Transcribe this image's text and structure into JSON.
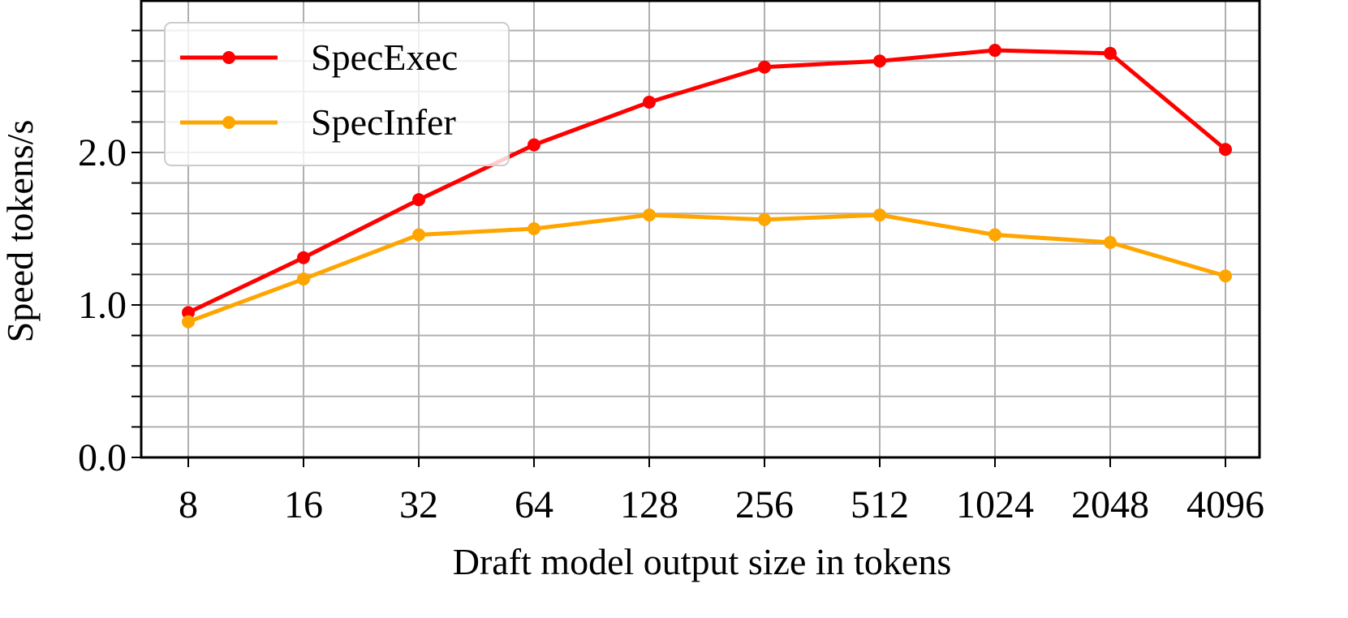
{
  "chart_data": {
    "type": "line",
    "title": "",
    "xlabel": "Draft model output size in tokens",
    "ylabel": "Speed tokens/s",
    "x_scale": "log2",
    "categories": [
      "8",
      "16",
      "32",
      "64",
      "128",
      "256",
      "512",
      "1024",
      "2048",
      "4096"
    ],
    "ylim": [
      0,
      3.0
    ],
    "yticks": [
      0.0,
      1.0,
      2.0
    ],
    "ytick_labels": [
      "0.0",
      "1.0",
      "2.0"
    ],
    "y_minor_step": 0.2,
    "grid": true,
    "legend_position": "top-left",
    "series": [
      {
        "name": "SpecExec",
        "color": "#ff0000",
        "values": [
          0.95,
          1.31,
          1.69,
          2.05,
          2.33,
          2.56,
          2.6,
          2.67,
          2.65,
          2.02
        ]
      },
      {
        "name": "SpecInfer",
        "color": "#ffa500",
        "values": [
          0.89,
          1.17,
          1.46,
          1.5,
          1.59,
          1.56,
          1.59,
          1.46,
          1.41,
          1.19
        ]
      }
    ]
  }
}
